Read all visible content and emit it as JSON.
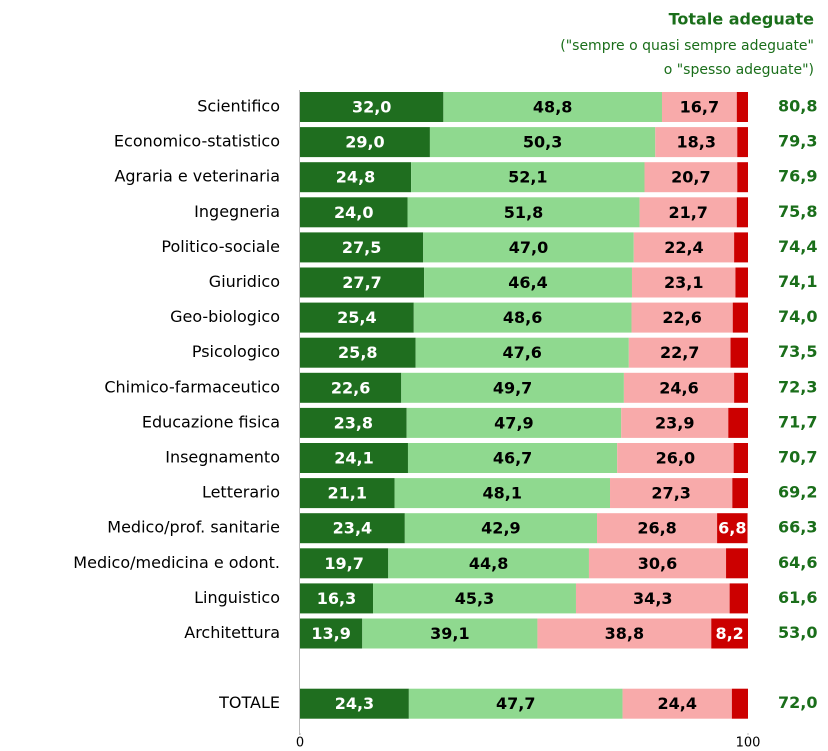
{
  "chart_data": {
    "type": "stacked-bar-horizontal",
    "title": "Totale adeguate",
    "subtitle": [
      "(\"sempre o quasi sempre adeguate\"",
      "o \"spesso adeguate\")"
    ],
    "categories": [
      "Scientifico",
      "Economico-statistico",
      "Agraria e veterinaria",
      "Ingegneria",
      "Politico-sociale",
      "Giuridico",
      "Geo-biologico",
      "Psicologico",
      "Chimico-farmaceutico",
      "Educazione fisica",
      "Insegnamento",
      "Letterario",
      "Medico/prof. sanitarie",
      "Medico/medicina e odont.",
      "Linguistico",
      "Architettura",
      null,
      "TOTALE"
    ],
    "series": [
      {
        "color": "#1f6e1f",
        "text_color": "#ffffff",
        "values": [
          32.0,
          29.0,
          24.8,
          24.0,
          27.5,
          27.7,
          25.4,
          25.8,
          22.6,
          23.8,
          24.1,
          21.1,
          23.4,
          19.7,
          16.3,
          13.9,
          null,
          24.3
        ],
        "value_labels": [
          "32,0",
          "29,0",
          "24,8",
          "24,0",
          "27,5",
          "27,7",
          "25,4",
          "25,8",
          "22,6",
          "23,8",
          "24,1",
          "21,1",
          "23,4",
          "19,7",
          "16,3",
          "13,9",
          null,
          "24,3"
        ]
      },
      {
        "color": "#8fd98f",
        "text_color": "#000000",
        "values": [
          48.8,
          50.3,
          52.1,
          51.8,
          47.0,
          46.4,
          48.6,
          47.6,
          49.7,
          47.9,
          46.7,
          48.1,
          42.9,
          44.8,
          45.3,
          39.1,
          null,
          47.7
        ],
        "value_labels": [
          "48,8",
          "50,3",
          "52,1",
          "51,8",
          "47,0",
          "46,4",
          "48,6",
          "47,6",
          "49,7",
          "47,9",
          "46,7",
          "48,1",
          "42,9",
          "44,8",
          "45,3",
          "39,1",
          null,
          "47,7"
        ]
      },
      {
        "color": "#f8aaaa",
        "text_color": "#000000",
        "values": [
          16.7,
          18.3,
          20.7,
          21.7,
          22.4,
          23.1,
          22.6,
          22.7,
          24.6,
          23.9,
          26.0,
          27.3,
          26.8,
          30.6,
          34.3,
          38.8,
          null,
          24.4
        ],
        "value_labels": [
          "16,7",
          "18,3",
          "20,7",
          "21,7",
          "22,4",
          "23,1",
          "22,6",
          "22,7",
          "24,6",
          "23,9",
          "26,0",
          "27,3",
          "26,8",
          "30,6",
          "34,3",
          "38,8",
          null,
          "24,4"
        ]
      },
      {
        "color": "#cc0000",
        "text_color": "#ffffff",
        "values": [
          2.5,
          2.4,
          2.4,
          2.5,
          3.1,
          2.8,
          3.4,
          3.9,
          3.1,
          4.4,
          3.2,
          3.5,
          6.8,
          4.9,
          4.1,
          8.2,
          null,
          3.6
        ],
        "value_labels": [
          null,
          null,
          null,
          null,
          null,
          null,
          null,
          null,
          null,
          null,
          null,
          null,
          "6,8",
          null,
          null,
          "8,2",
          null,
          null
        ]
      }
    ],
    "totals": {
      "color": "#1a6e1a",
      "values": [
        80.8,
        79.3,
        76.9,
        75.8,
        74.4,
        74.1,
        74.0,
        73.5,
        72.3,
        71.7,
        70.7,
        69.2,
        66.3,
        64.6,
        61.6,
        53.0,
        null,
        72.0
      ],
      "value_labels": [
        "80,8",
        "79,3",
        "76,9",
        "75,8",
        "74,4",
        "74,1",
        "74,0",
        "73,5",
        "72,3",
        "71,7",
        "70,7",
        "69,2",
        "66,3",
        "64,6",
        "61,6",
        "53,0",
        null,
        "72,0"
      ]
    },
    "xlim": [
      0,
      100
    ],
    "xticks": [
      0,
      100
    ]
  }
}
